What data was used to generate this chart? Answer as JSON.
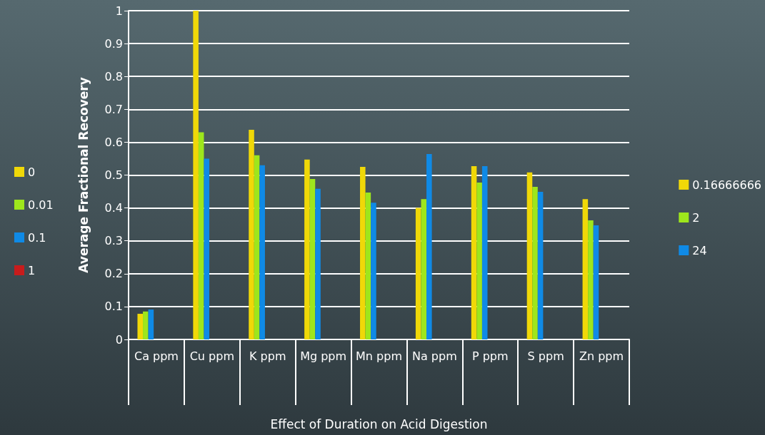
{
  "chart_data": {
    "type": "bar",
    "ylabel": "Average Fractional Recovery",
    "xlabel": "Effect of Duration on Acid Digestion",
    "categories": [
      "Ca ppm",
      "Cu ppm",
      "K ppm",
      "Mg ppm",
      "Mn ppm",
      "Na ppm",
      "P ppm",
      "S ppm",
      "Zn ppm"
    ],
    "series": [
      {
        "name": "0.16666666",
        "color": "#f0d808",
        "values": [
          0.078,
          1.0,
          0.638,
          0.547,
          0.525,
          0.4,
          0.527,
          0.508,
          0.427
        ]
      },
      {
        "name": "2",
        "color": "#9ee61c",
        "values": [
          0.085,
          0.63,
          0.56,
          0.488,
          0.447,
          0.427,
          0.477,
          0.464,
          0.362
        ]
      },
      {
        "name": "24",
        "color": "#0f8ae6",
        "values": [
          0.091,
          0.55,
          0.53,
          0.458,
          0.416,
          0.564,
          0.527,
          0.449,
          0.347
        ]
      },
      {
        "name": "0",
        "color": "#f0d808",
        "values": [
          null,
          null,
          null,
          null,
          null,
          null,
          null,
          null,
          null
        ]
      },
      {
        "name": "0.01",
        "color": "#9ee61c",
        "values": [
          null,
          null,
          null,
          null,
          null,
          null,
          null,
          null,
          null
        ]
      },
      {
        "name": "0.1",
        "color": "#0f8ae6",
        "values": [
          null,
          null,
          null,
          null,
          null,
          null,
          null,
          null,
          null
        ]
      },
      {
        "name": "1",
        "color": "#c81c1c",
        "values": [
          null,
          null,
          null,
          null,
          null,
          null,
          null,
          null,
          null
        ]
      }
    ],
    "ylim": [
      0,
      1
    ],
    "yticks": [
      0,
      0.1,
      0.2,
      0.3,
      0.4,
      0.5,
      0.6,
      0.7,
      0.8,
      0.9,
      1
    ],
    "grid": "y",
    "legend": "right"
  }
}
